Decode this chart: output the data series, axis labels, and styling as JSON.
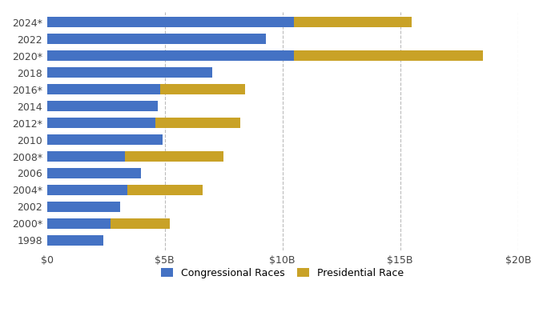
{
  "years": [
    "2024*",
    "2022",
    "2020*",
    "2018",
    "2016*",
    "2014",
    "2012*",
    "2010",
    "2008*",
    "2006",
    "2004*",
    "2002",
    "2000*",
    "1998"
  ],
  "congressional": [
    10.5,
    9.3,
    10.5,
    7.0,
    4.8,
    4.7,
    4.6,
    4.9,
    3.3,
    4.0,
    3.4,
    3.1,
    2.7,
    2.4
  ],
  "presidential": [
    5.0,
    0,
    8.0,
    0,
    3.6,
    0,
    3.6,
    0,
    4.2,
    0,
    3.2,
    0,
    2.5,
    0
  ],
  "congressional_color": "#4472C4",
  "presidential_color": "#C9A227",
  "background_color": "#FFFFFF",
  "xlim": [
    0,
    20
  ],
  "xticks": [
    0,
    5,
    10,
    15,
    20
  ],
  "xtick_labels": [
    "$0",
    "$5B",
    "$10B",
    "$15B",
    "$20B"
  ],
  "bar_height": 0.65,
  "legend_congressional": "Congressional Races",
  "legend_presidential": "Presidential Race"
}
